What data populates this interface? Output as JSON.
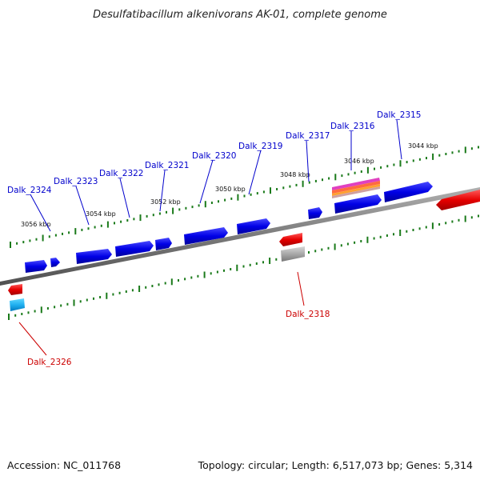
{
  "title": "Desulfatibacillum alkenivorans AK-01, complete genome",
  "footer": {
    "accession": "Accession: NC_011768",
    "summary": "Topology: circular; Length: 6,517,073 bp; Genes: 5,314"
  },
  "scale_labels": [
    "3056 kbp",
    "3054 kbp",
    "3052 kbp",
    "3050 kbp",
    "3048 kbp",
    "3046 kbp",
    "3044 kbp"
  ],
  "genes": {
    "forward": [
      "Dalk_2324",
      "Dalk_2323",
      "Dalk_2322",
      "Dalk_2321",
      "Dalk_2320",
      "Dalk_2319",
      "Dalk_2317",
      "Dalk_2316",
      "Dalk_2315"
    ],
    "reverse": [
      "Dalk_2318",
      "Dalk_2326"
    ]
  },
  "colors": {
    "forward_gene": "#0000e6",
    "reverse_gene": "#e60000",
    "forward_label": "#0000cc",
    "reverse_label": "#cc0000",
    "backbone": "#808080",
    "tick": "#1a7a1a",
    "trna": "#e040c0",
    "rrna_gray": "#a0a0a0",
    "cyan_feature": "#20b8f0"
  }
}
